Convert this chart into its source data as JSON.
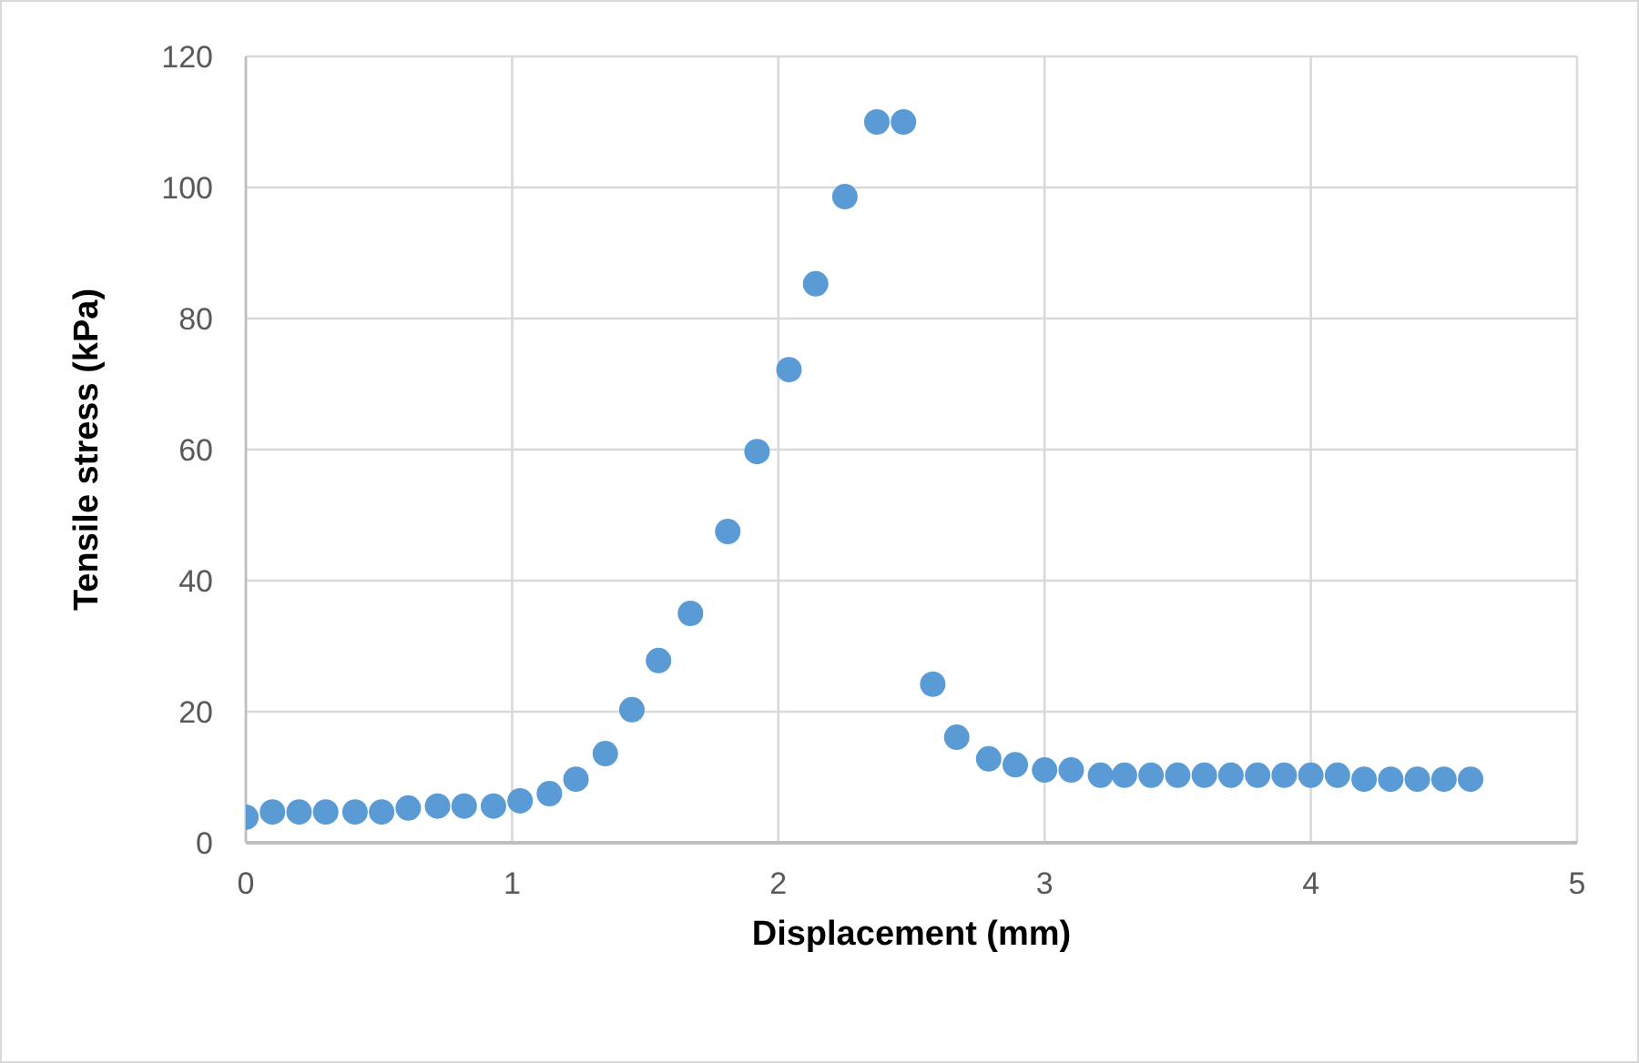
{
  "chart_data": {
    "type": "scatter",
    "xlabel": "Displacement (mm)",
    "ylabel": "Tensile stress (kPa)",
    "x": [
      0,
      0.1,
      0.2,
      0.3,
      0.41,
      0.51,
      0.61,
      0.72,
      0.82,
      0.93,
      1.03,
      1.14,
      1.24,
      1.35,
      1.45,
      1.55,
      1.67,
      1.81,
      1.92,
      2.04,
      2.14,
      2.25,
      2.37,
      2.47,
      2.58,
      2.67,
      2.79,
      2.89,
      3.0,
      3.1,
      3.21,
      3.3,
      3.4,
      3.5,
      3.6,
      3.7,
      3.8,
      3.9,
      4.0,
      4.1,
      4.2,
      4.3,
      4.4,
      4.5,
      4.6
    ],
    "series": [
      {
        "color": "#5b9bd5",
        "values": [
          3.9,
          4.7,
          4.7,
          4.7,
          4.7,
          4.7,
          5.3,
          5.6,
          5.6,
          5.6,
          6.4,
          7.5,
          9.7,
          13.6,
          20.3,
          27.8,
          35,
          47.5,
          59.7,
          72.2,
          85.3,
          98.6,
          110,
          110,
          24.2,
          16.1,
          12.8,
          11.9,
          11.1,
          11.1,
          10.3,
          10.3,
          10.3,
          10.3,
          10.3,
          10.3,
          10.3,
          10.3,
          10.3,
          10.3,
          9.7,
          9.7,
          9.7,
          9.7,
          9.7
        ]
      }
    ],
    "xlim": [
      0,
      5
    ],
    "xticks": [
      0,
      1,
      2,
      3,
      4,
      5
    ],
    "ylim": [
      0,
      120
    ],
    "yticks": [
      0,
      20,
      40,
      60,
      80,
      100,
      120
    ],
    "grid": true,
    "marker": "circle"
  }
}
